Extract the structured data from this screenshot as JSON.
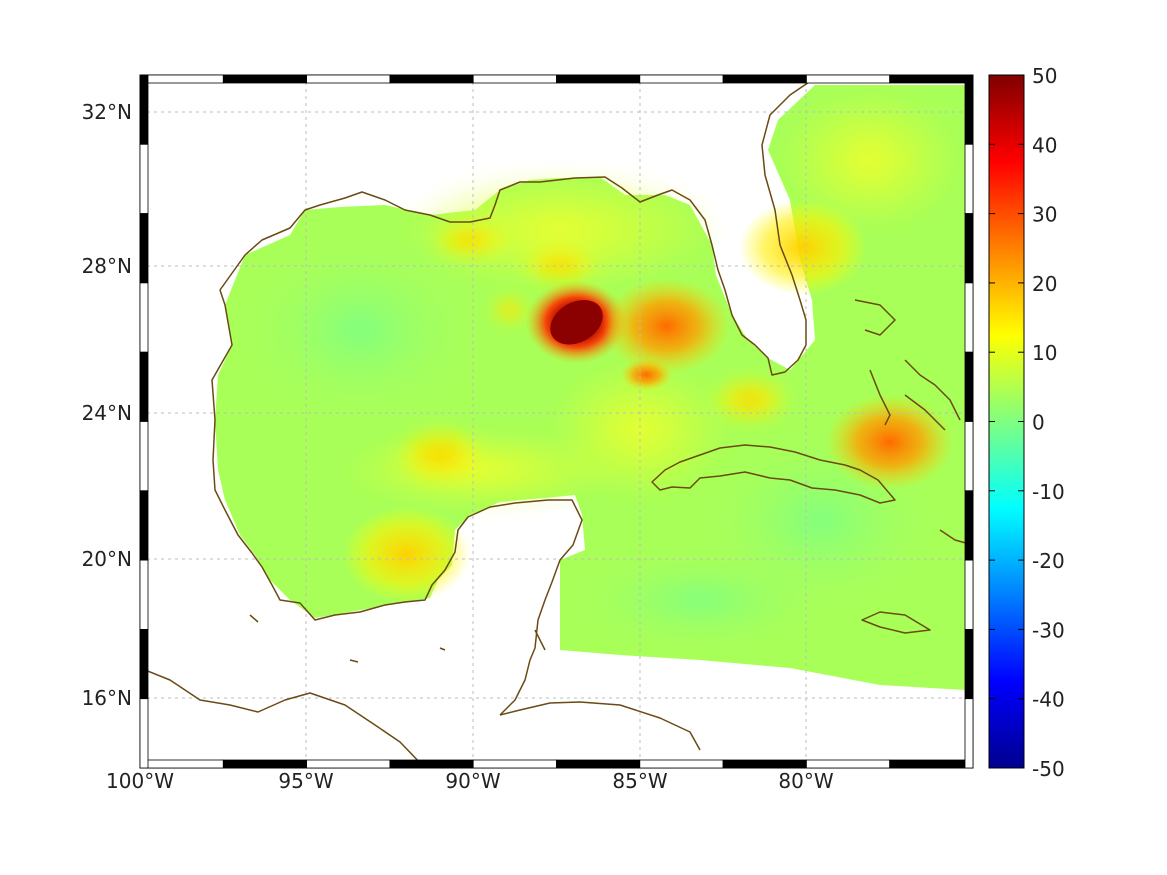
{
  "map": {
    "longitude_labels": [
      "100°W",
      "95°W",
      "90°W",
      "85°W",
      "80°W"
    ],
    "latitude_labels": [
      "32°N",
      "28°N",
      "24°N",
      "20°N",
      "16°N"
    ],
    "lon_range": [
      -100,
      -75
    ],
    "lat_range": [
      14.5,
      33
    ],
    "grid": true,
    "coastline_color": "#6b4a14",
    "features": [
      {
        "kind": "hotspot",
        "lon": -86.9,
        "lat": 26.4,
        "value": 50,
        "color": "#8b0000"
      },
      {
        "kind": "hotspot",
        "lon": -84.8,
        "lat": 25.0,
        "value": 30,
        "color": "#ff5a00"
      },
      {
        "kind": "hotspot",
        "lon": -84.2,
        "lat": 26.3,
        "value": 22,
        "color": "#ff9a10"
      },
      {
        "kind": "hotspot",
        "lon": -77.5,
        "lat": 23.2,
        "value": 22,
        "color": "#ff9a10"
      },
      {
        "kind": "hotspot",
        "lon": -92.0,
        "lat": 20.2,
        "value": 17,
        "color": "#ffc020"
      },
      {
        "kind": "hotspot",
        "lon": -80.1,
        "lat": 28.4,
        "value": 17,
        "color": "#ffc020"
      }
    ]
  },
  "colorbar": {
    "tick_labels": [
      "50",
      "40",
      "30",
      "20",
      "10",
      "0",
      "-10",
      "-20",
      "-30",
      "-40",
      "-50"
    ],
    "range": [
      -50,
      50
    ],
    "colormap": "jet",
    "colors": [
      "#00008f",
      "#0000ff",
      "#0080ff",
      "#00ffff",
      "#80ff80",
      "#ffff00",
      "#ff8000",
      "#ff0000",
      "#800000"
    ]
  }
}
